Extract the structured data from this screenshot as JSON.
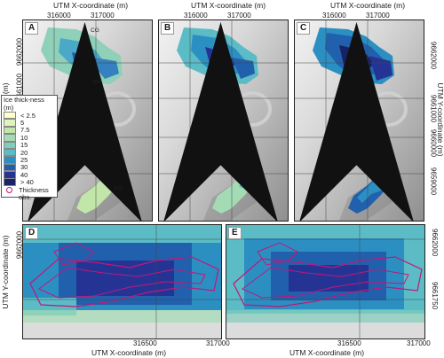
{
  "top_x_title": "UTM X-coordinate (m)",
  "top_x_ticks": [
    "316000",
    "317000"
  ],
  "bottom_x_title": "UTM X-coordinate (m)",
  "bottom_x_ticks": [
    "316500",
    "317000"
  ],
  "y_title": "UTM Y-coordinate (m)",
  "top_y_ticks": [
    "9662000",
    "9661000",
    "9660000",
    "9659000"
  ],
  "bottom_y_ticks": [
    "9662000",
    "9661750"
  ],
  "panels": [
    "A",
    "B",
    "C",
    "D",
    "E"
  ],
  "glacier_labels": {
    "cg": "CG",
    "nif": "NIF",
    "kg": "KG"
  },
  "legend": {
    "title": "Ice thick-ness (m)",
    "classes": [
      "< 2.5",
      "5",
      "7.5",
      "10",
      "15",
      "20",
      "25",
      "30",
      "40",
      "> 40"
    ],
    "class_colors": [
      "#ffffcc",
      "#e0f3b9",
      "#c2e6a9",
      "#a3dcb4",
      "#7fcdbb",
      "#5bbcc6",
      "#2c8fc2",
      "#2160ac",
      "#253494",
      "#182266"
    ],
    "observation_label": "Thickness obs.",
    "observation_color": "#c0187a"
  },
  "icons": [
    "north-arrow-icon",
    "observation-marker-icon"
  ]
}
